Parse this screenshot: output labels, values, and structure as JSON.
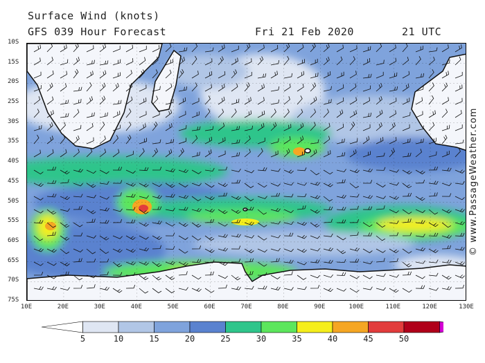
{
  "header": {
    "title": "Surface Wind (knots)",
    "model": "GFS 039 Hour Forecast",
    "date": "Fri 21 Feb 2020",
    "time": "21 UTC"
  },
  "map": {
    "lat_labels": [
      "10S",
      "15S",
      "20S",
      "25S",
      "30S",
      "35S",
      "40S",
      "45S",
      "50S",
      "55S",
      "60S",
      "65S",
      "70S",
      "75S"
    ],
    "lon_labels": [
      "10E",
      "20E",
      "30E",
      "40E",
      "50E",
      "60E",
      "70E",
      "80E",
      "90E",
      "100E",
      "110E",
      "120E",
      "130E"
    ]
  },
  "copyright": "© www.PassageWeather.com",
  "legend": {
    "labels": [
      "5",
      "10",
      "15",
      "20",
      "25",
      "30",
      "35",
      "40",
      "45",
      "50"
    ],
    "colors": [
      "#ffffff",
      "#dfe6f3",
      "#b1c6e6",
      "#7fa3dc",
      "#5a82cf",
      "#2fc58b",
      "#5ce65c",
      "#f5ee1c",
      "#f5a623",
      "#e23c3c",
      "#b0001a",
      "#d400d4"
    ]
  }
}
